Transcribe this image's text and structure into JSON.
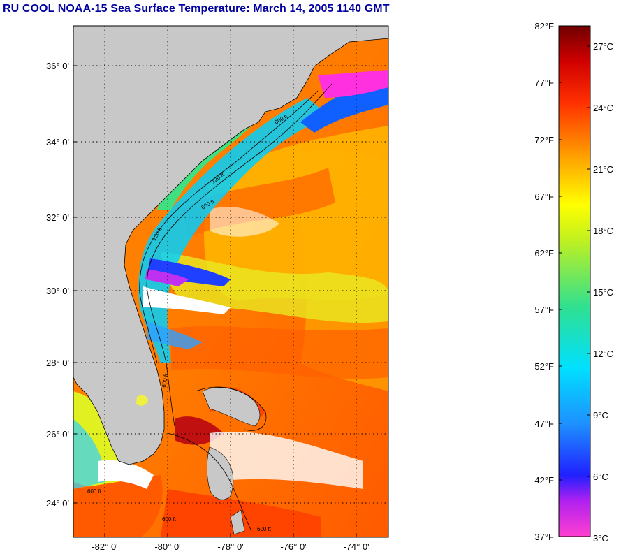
{
  "title": "RU COOL  NOAA-15  Sea Surface Temperature:  March 14, 2005 1140 GMT",
  "map": {
    "lon_ticks": [
      "-82° 0'",
      "-80° 0'",
      "-78° 0'",
      "-76° 0'",
      "-74° 0'"
    ],
    "lat_ticks": [
      "36° 0'",
      "34° 0'",
      "32° 0'",
      "30° 0'",
      "28° 0'",
      "26° 0'",
      "24° 0'"
    ],
    "contour_labels": [
      "600 ft",
      "120 ft",
      "600 ft",
      "120 ft",
      "600 ft",
      "600 ft",
      "600 ft",
      "600 ft"
    ],
    "colors": {
      "land": "#c8c8c8",
      "cloud": "#ffffff",
      "grid": "#000000"
    }
  },
  "colorbar": {
    "fahrenheit": [
      "82°F",
      "77°F",
      "72°F",
      "67°F",
      "62°F",
      "57°F",
      "52°F",
      "47°F",
      "42°F",
      "37°F"
    ],
    "celsius": [
      "27°C",
      "24°C",
      "21°C",
      "18°C",
      "15°C",
      "12°C",
      "9°C",
      "6°C",
      "3°C"
    ],
    "range_f": [
      37,
      82
    ],
    "stops": [
      "#ff40d0",
      "#a020f0",
      "#2020ff",
      "#1e90ff",
      "#00e0ff",
      "#30e090",
      "#c0f020",
      "#ffff00",
      "#ff9a00",
      "#ff3000",
      "#d00000",
      "#700000"
    ]
  }
}
